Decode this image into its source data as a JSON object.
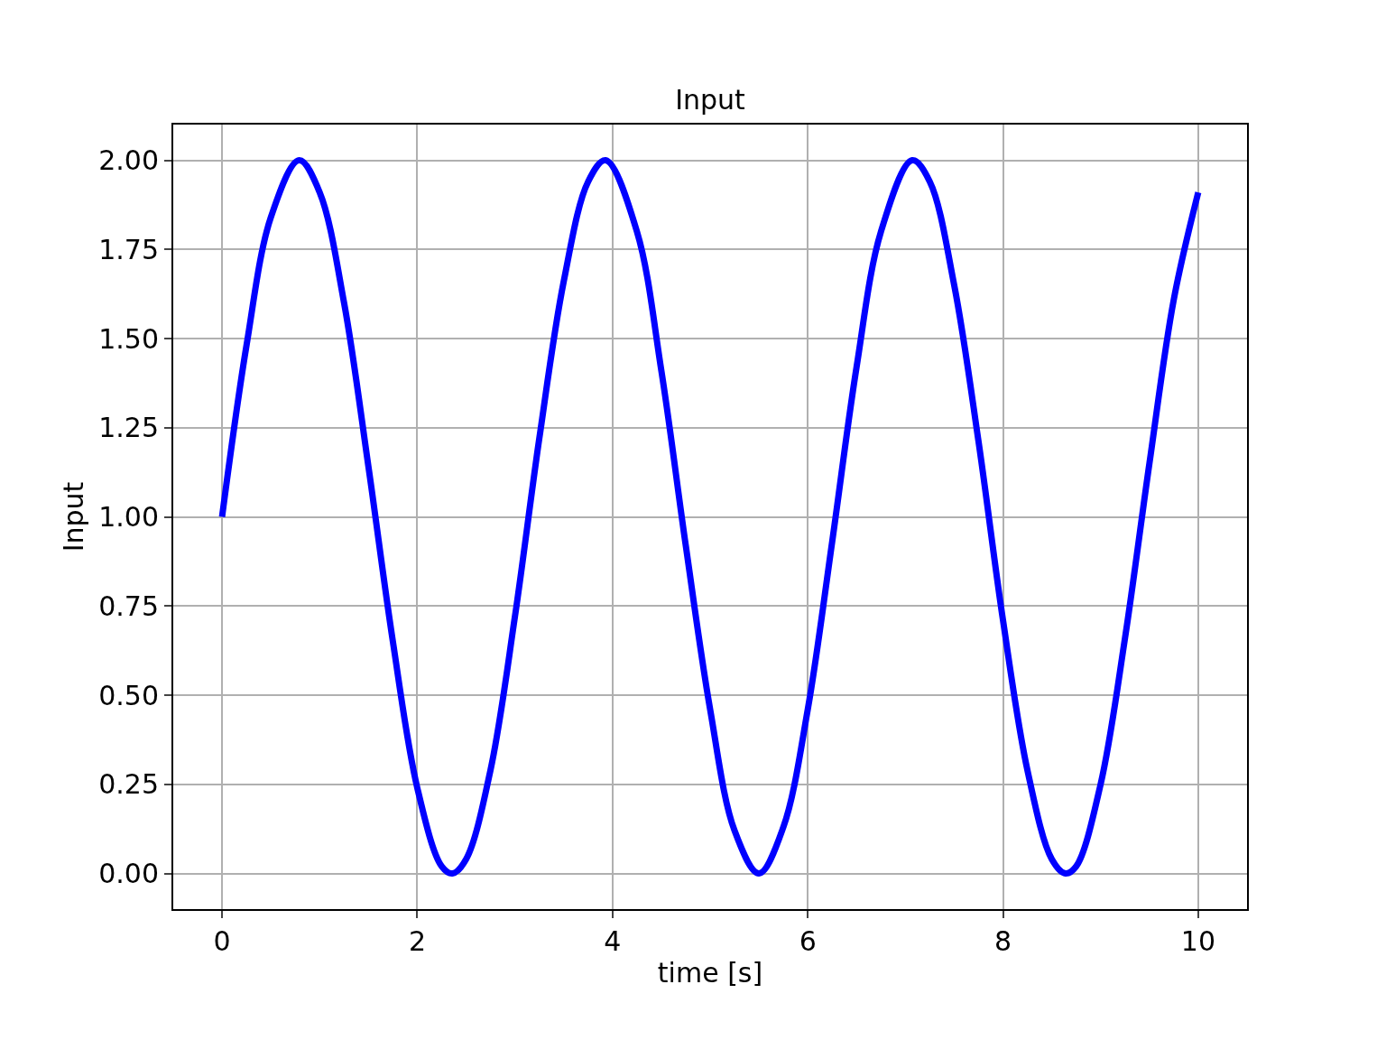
{
  "chart_data": {
    "type": "line",
    "title": "Input",
    "xlabel": "time [s]",
    "ylabel": "Input",
    "x": [
      0,
      0.25,
      0.5,
      0.79,
      1,
      1.25,
      1.5,
      1.75,
      2,
      2.25,
      2.36,
      2.5,
      2.75,
      3,
      3.25,
      3.5,
      3.75,
      3.93,
      4.25,
      4.5,
      4.75,
      5,
      5.25,
      5.5,
      5.75,
      6,
      6.25,
      6.5,
      6.75,
      7.07,
      7.25,
      7.5,
      7.75,
      8,
      8.25,
      8.5,
      8.64,
      8.75,
      9,
      9.25,
      9.5,
      9.75,
      10
    ],
    "series": [
      {
        "color": "#0000ff",
        "values": [
          1.0,
          1.48,
          1.84,
          2.0,
          1.91,
          1.6,
          1.14,
          0.65,
          0.24,
          0.02,
          0.0,
          0.04,
          0.29,
          0.72,
          1.22,
          1.66,
          1.94,
          2.0,
          1.8,
          1.41,
          0.92,
          0.46,
          0.12,
          0.0,
          0.13,
          0.46,
          0.93,
          1.42,
          1.8,
          2.0,
          1.94,
          1.65,
          1.21,
          0.71,
          0.29,
          0.04,
          0.0,
          0.02,
          0.25,
          0.66,
          1.15,
          1.61,
          1.91
        ]
      }
    ],
    "xlim": [
      -0.5,
      10.5
    ],
    "xticks": [
      0,
      2,
      4,
      6,
      8,
      10
    ],
    "ylim": [
      -0.1,
      2.1
    ],
    "yticks": [
      {
        "value": 0,
        "label": "0.00"
      },
      {
        "value": 0.25,
        "label": "0.25"
      },
      {
        "value": 0.5,
        "label": "0.50"
      },
      {
        "value": 0.75,
        "label": "0.75"
      },
      {
        "value": 1,
        "label": "1.00"
      },
      {
        "value": 1.25,
        "label": "1.25"
      },
      {
        "value": 1.5,
        "label": "1.50"
      },
      {
        "value": 1.75,
        "label": "1.75"
      },
      {
        "value": 2,
        "label": "2.00"
      }
    ],
    "grid": true,
    "line_style": "solid"
  }
}
